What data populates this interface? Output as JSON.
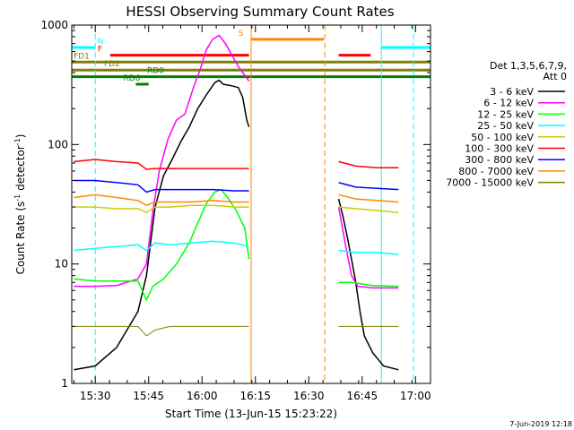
{
  "chart_data": {
    "type": "line",
    "title": "HESSI Observing Summary Count Rates",
    "xlabel": "Start Time (13-Jun-15 15:23:22)",
    "ylabel_parts": [
      "Count Rate (s",
      "-1",
      " detector",
      "-1",
      ")"
    ],
    "yscale": "log",
    "ylim": [
      1,
      1000
    ],
    "xlim_min": [
      15.39,
      17.07
    ],
    "y_ticks": [
      "1",
      "10",
      "100",
      "1000"
    ],
    "x_ticks": [
      {
        "label": "15:30",
        "v": 15.5
      },
      {
        "label": "15:45",
        "v": 15.75
      },
      {
        "label": "16:00",
        "v": 16.0
      },
      {
        "label": "16:15",
        "v": 16.25
      },
      {
        "label": "16:30",
        "v": 16.5
      },
      {
        "label": "16:45",
        "v": 16.75
      },
      {
        "label": "17:00",
        "v": 17.0
      }
    ],
    "legend_title": [
      "Det 1,3,5,6,7,9,",
      "Att 0"
    ],
    "legend_placement": "right",
    "series": [
      {
        "name": "3 - 6 keV",
        "color": "#000000",
        "points": [
          [
            15.4,
            1.3
          ],
          [
            15.5,
            1.4
          ],
          [
            15.6,
            2.0
          ],
          [
            15.7,
            4.0
          ],
          [
            15.74,
            8
          ],
          [
            15.78,
            30
          ],
          [
            15.82,
            55
          ],
          [
            15.86,
            75
          ],
          [
            15.9,
            105
          ],
          [
            15.94,
            140
          ],
          [
            15.98,
            200
          ],
          [
            16.02,
            260
          ],
          [
            16.06,
            330
          ],
          [
            16.08,
            345
          ],
          [
            16.1,
            320
          ],
          [
            16.14,
            310
          ],
          [
            16.17,
            300
          ],
          [
            16.19,
            250
          ],
          [
            16.21,
            160
          ],
          [
            16.22,
            140
          ]
        ],
        "points2": [
          [
            16.64,
            35
          ],
          [
            16.66,
            25
          ],
          [
            16.68,
            17
          ],
          [
            16.7,
            11
          ],
          [
            16.72,
            7
          ],
          [
            16.74,
            4
          ],
          [
            16.76,
            2.5
          ],
          [
            16.8,
            1.8
          ],
          [
            16.85,
            1.4
          ],
          [
            16.92,
            1.3
          ]
        ]
      },
      {
        "name": "6 - 12 keV",
        "color": "#ff00ff",
        "points": [
          [
            15.4,
            6.5
          ],
          [
            15.5,
            6.5
          ],
          [
            15.6,
            6.6
          ],
          [
            15.7,
            7.5
          ],
          [
            15.74,
            10
          ],
          [
            15.77,
            28
          ],
          [
            15.8,
            60
          ],
          [
            15.84,
            110
          ],
          [
            15.88,
            160
          ],
          [
            15.92,
            180
          ],
          [
            15.96,
            300
          ],
          [
            15.99,
            420
          ],
          [
            16.02,
            620
          ],
          [
            16.05,
            760
          ],
          [
            16.08,
            820
          ],
          [
            16.11,
            700
          ],
          [
            16.14,
            560
          ],
          [
            16.17,
            450
          ],
          [
            16.2,
            380
          ],
          [
            16.22,
            340
          ]
        ],
        "points2": [
          [
            16.64,
            30
          ],
          [
            16.67,
            15
          ],
          [
            16.7,
            8
          ],
          [
            16.73,
            6.5
          ],
          [
            16.8,
            6.3
          ],
          [
            16.92,
            6.3
          ]
        ]
      },
      {
        "name": "12 - 25 keV",
        "color": "#00ff00",
        "points": [
          [
            15.4,
            7.5
          ],
          [
            15.5,
            7.2
          ],
          [
            15.6,
            7.2
          ],
          [
            15.7,
            7.2
          ],
          [
            15.74,
            5.0
          ],
          [
            15.77,
            6.5
          ],
          [
            15.82,
            7.5
          ],
          [
            15.88,
            10
          ],
          [
            15.94,
            15
          ],
          [
            15.98,
            22
          ],
          [
            16.02,
            32
          ],
          [
            16.06,
            40
          ],
          [
            16.09,
            42
          ],
          [
            16.12,
            36
          ],
          [
            16.16,
            28
          ],
          [
            16.2,
            20
          ],
          [
            16.22,
            11
          ]
        ],
        "points2": [
          [
            16.64,
            7
          ],
          [
            16.7,
            7
          ],
          [
            16.8,
            6.6
          ],
          [
            16.92,
            6.5
          ]
        ]
      },
      {
        "name": "25 - 50 keV",
        "color": "#00ffff",
        "points": [
          [
            15.4,
            13
          ],
          [
            15.5,
            13.5
          ],
          [
            15.6,
            14
          ],
          [
            15.7,
            14.5
          ],
          [
            15.74,
            13
          ],
          [
            15.78,
            15
          ],
          [
            15.85,
            14.5
          ],
          [
            15.95,
            15
          ],
          [
            16.05,
            15.5
          ],
          [
            16.15,
            15
          ],
          [
            16.22,
            14
          ]
        ],
        "points2": [
          [
            16.64,
            13
          ],
          [
            16.72,
            12.5
          ],
          [
            16.82,
            12.5
          ],
          [
            16.92,
            12
          ]
        ]
      },
      {
        "name": "50 - 100 keV",
        "color": "#cccc00",
        "points": [
          [
            15.4,
            30
          ],
          [
            15.5,
            30
          ],
          [
            15.6,
            29
          ],
          [
            15.7,
            29
          ],
          [
            15.74,
            27
          ],
          [
            15.78,
            30
          ],
          [
            15.85,
            30
          ],
          [
            15.95,
            31
          ],
          [
            16.05,
            31
          ],
          [
            16.15,
            30
          ],
          [
            16.22,
            30
          ]
        ],
        "points2": [
          [
            16.64,
            30
          ],
          [
            16.72,
            29
          ],
          [
            16.82,
            28
          ],
          [
            16.92,
            27
          ]
        ]
      },
      {
        "name": "100 - 300 keV",
        "color": "#ff0000",
        "points": [
          [
            15.4,
            72
          ],
          [
            15.5,
            75
          ],
          [
            15.6,
            72
          ],
          [
            15.7,
            70
          ],
          [
            15.74,
            62
          ],
          [
            15.78,
            63
          ],
          [
            15.85,
            63
          ],
          [
            15.95,
            63
          ],
          [
            16.05,
            63
          ],
          [
            16.15,
            63
          ],
          [
            16.22,
            63
          ]
        ],
        "points2": [
          [
            16.64,
            72
          ],
          [
            16.72,
            66
          ],
          [
            16.82,
            64
          ],
          [
            16.92,
            64
          ]
        ]
      },
      {
        "name": "300 - 800 keV",
        "color": "#0000ff",
        "points": [
          [
            15.4,
            50
          ],
          [
            15.5,
            50
          ],
          [
            15.6,
            48
          ],
          [
            15.7,
            46
          ],
          [
            15.74,
            40
          ],
          [
            15.78,
            42
          ],
          [
            15.85,
            42
          ],
          [
            15.95,
            42
          ],
          [
            16.05,
            42
          ],
          [
            16.15,
            41
          ],
          [
            16.22,
            41
          ]
        ],
        "points2": [
          [
            16.64,
            48
          ],
          [
            16.72,
            44
          ],
          [
            16.82,
            43
          ],
          [
            16.92,
            42
          ]
        ]
      },
      {
        "name": "800 - 7000 keV",
        "color": "#ff8800",
        "points": [
          [
            15.4,
            36
          ],
          [
            15.5,
            38
          ],
          [
            15.6,
            36
          ],
          [
            15.7,
            34
          ],
          [
            15.74,
            31
          ],
          [
            15.78,
            33
          ],
          [
            15.85,
            33
          ],
          [
            15.95,
            33
          ],
          [
            16.05,
            34
          ],
          [
            16.15,
            33
          ],
          [
            16.22,
            33
          ]
        ],
        "points2": [
          [
            16.64,
            38
          ],
          [
            16.72,
            35
          ],
          [
            16.82,
            34
          ],
          [
            16.92,
            33
          ]
        ]
      },
      {
        "name": "7000 - 15000 keV",
        "color": "#808000",
        "points": [
          [
            15.4,
            3
          ],
          [
            15.5,
            3
          ],
          [
            15.6,
            3
          ],
          [
            15.7,
            3
          ],
          [
            15.74,
            2.5
          ],
          [
            15.78,
            2.8
          ],
          [
            15.85,
            3
          ],
          [
            15.95,
            3
          ],
          [
            16.05,
            3
          ],
          [
            16.15,
            3
          ],
          [
            16.22,
            3
          ]
        ],
        "points2": [
          [
            16.64,
            3
          ],
          [
            16.72,
            3
          ],
          [
            16.82,
            3
          ],
          [
            16.92,
            3
          ]
        ]
      }
    ],
    "flags": [
      {
        "label": "N",
        "color": "#00ffff",
        "y": 650,
        "segments": [
          [
            15.39,
            15.5
          ],
          [
            16.84,
            17.07
          ]
        ]
      },
      {
        "label": "F",
        "color": "#ff0000",
        "y": 560,
        "segments": [
          [
            15.57,
            16.22
          ],
          [
            16.64,
            16.79
          ]
        ]
      },
      {
        "label": "S",
        "color": "#ff8800",
        "y": 760,
        "segments": [
          [
            16.23,
            16.57
          ]
        ]
      },
      {
        "label": "FD1",
        "color": "#808000",
        "y": 490,
        "segments": [
          [
            15.39,
            17.07
          ]
        ]
      },
      {
        "label": "FD2",
        "color": "#808000",
        "y": 420,
        "segments": [
          [
            15.39,
            17.07
          ]
        ]
      },
      {
        "label": "RD0",
        "color": "#008000",
        "y": 370,
        "segments": [
          [
            15.39,
            17.07
          ]
        ]
      },
      {
        "label": "RD6",
        "color": "#008000",
        "y": 320,
        "segments": [
          [
            15.69,
            15.75
          ]
        ]
      }
    ],
    "vlines": [
      {
        "v": 15.39,
        "color": "#00ffff",
        "dash": false
      },
      {
        "v": 15.5,
        "color": "#00ffff",
        "dash": true
      },
      {
        "v": 16.23,
        "color": "#ff8800",
        "dash": false
      },
      {
        "v": 16.575,
        "color": "#ff8800",
        "dash": true
      },
      {
        "v": 16.84,
        "color": "#00ffff",
        "dash": false
      },
      {
        "v": 16.99,
        "color": "#00ffff",
        "dash": true
      }
    ],
    "footer_date": "7-Jun-2019 12:18"
  }
}
